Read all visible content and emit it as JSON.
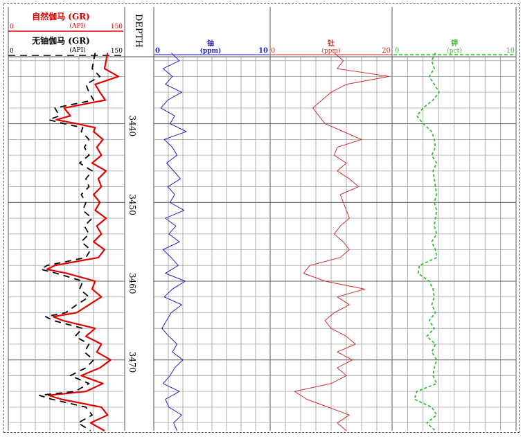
{
  "tracks": {
    "gr": {
      "curves": [
        {
          "name": "自然伽马 (GR)",
          "unit": "(API)",
          "min": "0",
          "max": "150",
          "color": "#e00000",
          "style": "solid"
        },
        {
          "name": "无铀伽马 (GR)",
          "unit": "(API)",
          "min": "0",
          "max": "150",
          "color": "#000000",
          "style": "dashed"
        }
      ]
    },
    "depth": {
      "label": "DEPTH",
      "ticks": [
        "3440",
        "3450",
        "3460",
        "3470"
      ]
    },
    "uranium": {
      "name": "铀",
      "unit": "(ppm)",
      "min": "0",
      "max": "10",
      "color": "#2020c0"
    },
    "thorium": {
      "name": "钍",
      "unit": "(ppm)",
      "min": "0",
      "max": "20",
      "color": "#d03030"
    },
    "potassium": {
      "name": "钾",
      "unit": "(pct)",
      "min": "0",
      "max": "10",
      "color": "#33bb33"
    }
  },
  "chart_data": {
    "type": "line",
    "title": "",
    "depth_label": "DEPTH",
    "depth_range": [
      3431.5,
      3479
    ],
    "depth_ticks": [
      3440,
      3450,
      3460,
      3470
    ],
    "series": [
      {
        "name": "自然伽马 (GR)",
        "unit": "API",
        "range": [
          0,
          150
        ],
        "color": "#e00000",
        "style": "solid",
        "depth": [
          3431,
          3433,
          3434,
          3435,
          3436,
          3437,
          3438,
          3439,
          3439.5,
          3440,
          3440.5,
          3441,
          3442,
          3443,
          3444,
          3445,
          3446,
          3447,
          3448,
          3449,
          3450,
          3451,
          3452,
          3453,
          3454,
          3455,
          3456,
          3457,
          3458,
          3458.5,
          3459,
          3460,
          3461,
          3462,
          3463,
          3464,
          3464.5,
          3465,
          3466,
          3467,
          3468,
          3469,
          3470,
          3471,
          3472,
          3473,
          3474,
          3474.5,
          3475,
          3476,
          3477,
          3478,
          3479
        ],
        "values": [
          128,
          124,
          142,
          112,
          118,
          125,
          72,
          80,
          62,
          88,
          112,
          110,
          122,
          114,
          120,
          108,
          126,
          116,
          120,
          110,
          118,
          112,
          126,
          114,
          120,
          110,
          124,
          116,
          60,
          50,
          75,
          112,
          108,
          120,
          104,
          88,
          58,
          70,
          112,
          100,
          120,
          114,
          132,
          118,
          94,
          122,
          100,
          52,
          68,
          120,
          128,
          106,
          124
        ]
      },
      {
        "name": "无铀伽马 (GR)",
        "unit": "API",
        "range": [
          0,
          150
        ],
        "color": "#000000",
        "style": "dashed",
        "depth": [
          3431,
          3433,
          3434,
          3435,
          3436,
          3437,
          3438,
          3439,
          3439.5,
          3440,
          3440.5,
          3441,
          3442,
          3443,
          3444,
          3445,
          3446,
          3447,
          3448,
          3449,
          3450,
          3451,
          3452,
          3453,
          3454,
          3455,
          3456,
          3457,
          3458,
          3458.5,
          3459,
          3460,
          3461,
          3462,
          3463,
          3464,
          3464.5,
          3465,
          3466,
          3467,
          3468,
          3469,
          3470,
          3471,
          3472,
          3473,
          3474,
          3474.5,
          3475,
          3476,
          3477,
          3478,
          3479
        ],
        "values": [
          112,
          108,
          118,
          100,
          104,
          110,
          60,
          66,
          52,
          72,
          96,
          94,
          104,
          98,
          104,
          92,
          108,
          100,
          104,
          94,
          100,
          96,
          108,
          98,
          104,
          94,
          106,
          100,
          50,
          42,
          62,
          96,
          92,
          104,
          88,
          74,
          48,
          58,
          96,
          86,
          104,
          98,
          110,
          100,
          80,
          104,
          86,
          40,
          56,
          100,
          108,
          90,
          106
        ]
      },
      {
        "name": "铀",
        "unit": "ppm",
        "range": [
          0,
          10
        ],
        "color": "#2020c0",
        "style": "solid",
        "depth": [
          3431,
          3432,
          3433,
          3434,
          3435,
          3436,
          3437,
          3438,
          3439,
          3440,
          3441,
          3442,
          3443,
          3444,
          3445,
          3446,
          3447,
          3448,
          3449,
          3450,
          3451,
          3452,
          3453,
          3454,
          3455,
          3456,
          3457,
          3458,
          3459,
          3460,
          3461,
          3462,
          3463,
          3464,
          3465,
          3466,
          3467,
          3468,
          3469,
          3470,
          3471,
          3472,
          3473,
          3474,
          3475,
          3476,
          3477,
          3478,
          3479
        ],
        "values": [
          1.5,
          2.2,
          0.8,
          1.6,
          1.0,
          2.4,
          1.2,
          0.6,
          1.8,
          1.4,
          2.8,
          0.9,
          1.6,
          2.0,
          1.1,
          1.7,
          2.3,
          1.2,
          1.8,
          1.4,
          2.6,
          1.0,
          1.9,
          1.3,
          2.2,
          0.8,
          1.5,
          2.1,
          1.0,
          2.7,
          1.6,
          0.9,
          2.4,
          1.5,
          1.1,
          0.7,
          1.3,
          2.0,
          1.6,
          2.5,
          1.8,
          1.4,
          0.8,
          2.2,
          1.0,
          1.3,
          2.4,
          1.7,
          2.0
        ]
      },
      {
        "name": "钍",
        "unit": "ppm",
        "range": [
          0,
          20
        ],
        "color": "#d03030",
        "style": "solid",
        "depth": [
          3431,
          3432,
          3433,
          3434,
          3435,
          3436,
          3437,
          3438,
          3439,
          3440,
          3441,
          3442,
          3443,
          3444,
          3445,
          3446,
          3447,
          3448,
          3449,
          3450,
          3451,
          3452,
          3453,
          3454,
          3455,
          3456,
          3457,
          3458,
          3459,
          3460,
          3461,
          3462,
          3463,
          3464,
          3465,
          3466,
          3467,
          3468,
          3469,
          3470,
          3471,
          3472,
          3473,
          3474,
          3475,
          3476,
          3477,
          3478,
          3479
        ],
        "values": [
          10.5,
          12,
          11,
          19.5,
          12.5,
          10,
          8.5,
          7,
          8,
          9,
          12,
          15,
          11,
          10.5,
          12.5,
          11,
          13,
          14.5,
          11.5,
          12,
          12.5,
          13,
          11.5,
          10.5,
          12,
          13,
          11.5,
          6.5,
          5.5,
          9,
          15.5,
          11,
          13,
          10.5,
          9,
          10,
          12.5,
          14,
          11,
          13.5,
          11,
          12.5,
          10,
          4,
          6,
          9.5,
          13,
          11,
          12.5
        ]
      },
      {
        "name": "钾",
        "unit": "pct",
        "range": [
          0,
          10
        ],
        "color": "#33bb33",
        "style": "dashed",
        "depth": [
          3431,
          3432,
          3433,
          3434,
          3435,
          3436,
          3437,
          3438,
          3439,
          3440,
          3441,
          3442,
          3443,
          3444,
          3445,
          3446,
          3447,
          3448,
          3449,
          3450,
          3451,
          3452,
          3453,
          3454,
          3455,
          3456,
          3457,
          3458,
          3459,
          3460,
          3461,
          3462,
          3463,
          3464,
          3465,
          3466,
          3467,
          3468,
          3469,
          3470,
          3471,
          3472,
          3473,
          3474,
          3475,
          3476,
          3477,
          3478,
          3479
        ],
        "values": [
          3.5,
          3.2,
          3.4,
          3.0,
          3.4,
          3.8,
          3.3,
          2.5,
          2.0,
          2.5,
          3.2,
          3.4,
          3.5,
          3.2,
          3.6,
          3.3,
          3.4,
          3.5,
          3.6,
          3.4,
          3.6,
          3.5,
          3.4,
          3.6,
          3.2,
          3.5,
          3.6,
          2.2,
          2.1,
          3.0,
          3.3,
          3.4,
          3.2,
          3.5,
          3.0,
          3.4,
          2.8,
          3.5,
          3.2,
          3.6,
          3.4,
          3.3,
          3.6,
          2.0,
          1.8,
          3.2,
          3.6,
          2.8,
          3.5
        ]
      }
    ]
  }
}
